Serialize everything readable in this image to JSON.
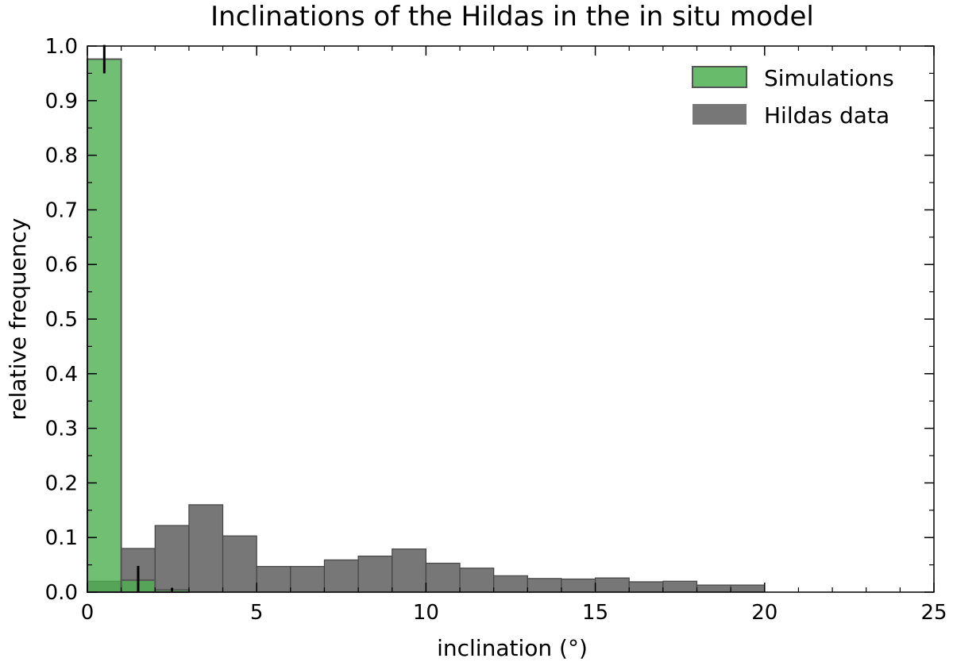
{
  "chart_data": {
    "type": "bar",
    "title": "Inclinations of the Hildas in the in situ model",
    "xlabel": "inclination (°)",
    "ylabel": "relative frequency",
    "xlim": [
      0,
      25
    ],
    "ylim": [
      0,
      1.0
    ],
    "x_ticks": [
      0,
      5,
      10,
      15,
      20,
      25
    ],
    "x_tick_labels": [
      "0",
      "5",
      "10",
      "15",
      "20",
      "25"
    ],
    "y_ticks": [
      0.0,
      0.1,
      0.2,
      0.3,
      0.4,
      0.5,
      0.6,
      0.7,
      0.8,
      0.9,
      1.0
    ],
    "y_tick_labels": [
      "0.0",
      "0.1",
      "0.2",
      "0.3",
      "0.4",
      "0.5",
      "0.6",
      "0.7",
      "0.8",
      "0.9",
      "1.0"
    ],
    "legend_position": "top-right",
    "grid": false,
    "colors": {
      "simulations": "#4caf50",
      "simulations_edge": "#555555",
      "hildas": "#777777",
      "hildas_edge": "#444444",
      "overlap": "#2e6b2e",
      "error_bar": "#000000"
    },
    "series": [
      {
        "name": "Hildas data",
        "bin_width": 1,
        "bins": [
          {
            "x0": 0,
            "value": 0.02
          },
          {
            "x0": 1,
            "value": 0.08
          },
          {
            "x0": 2,
            "value": 0.122
          },
          {
            "x0": 3,
            "value": 0.16
          },
          {
            "x0": 4,
            "value": 0.103
          },
          {
            "x0": 5,
            "value": 0.047
          },
          {
            "x0": 6,
            "value": 0.047
          },
          {
            "x0": 7,
            "value": 0.059
          },
          {
            "x0": 8,
            "value": 0.066
          },
          {
            "x0": 9,
            "value": 0.079
          },
          {
            "x0": 10,
            "value": 0.053
          },
          {
            "x0": 11,
            "value": 0.044
          },
          {
            "x0": 12,
            "value": 0.03
          },
          {
            "x0": 13,
            "value": 0.025
          },
          {
            "x0": 14,
            "value": 0.024
          },
          {
            "x0": 15,
            "value": 0.026
          },
          {
            "x0": 16,
            "value": 0.019
          },
          {
            "x0": 17,
            "value": 0.02
          },
          {
            "x0": 18,
            "value": 0.013
          },
          {
            "x0": 19,
            "value": 0.013
          }
        ]
      },
      {
        "name": "Simulations",
        "bin_width": 1,
        "bins": [
          {
            "x0": 0,
            "value": 0.976,
            "error": 0.026
          },
          {
            "x0": 1,
            "value": 0.022,
            "error": 0.026
          },
          {
            "x0": 2,
            "value": 0.004,
            "error": 0.004
          }
        ]
      }
    ]
  }
}
